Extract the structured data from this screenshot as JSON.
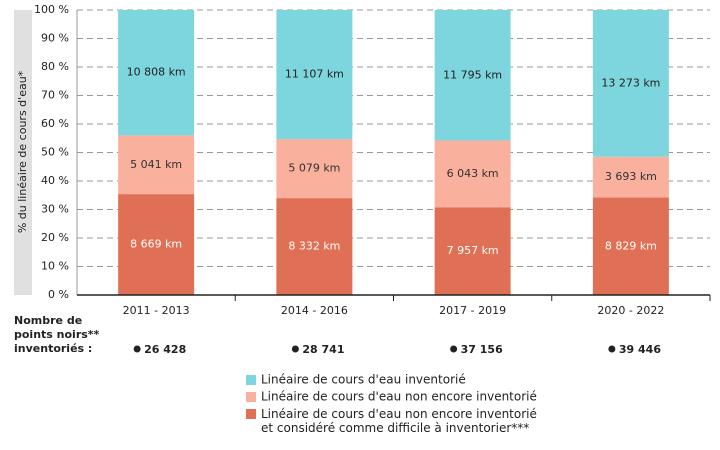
{
  "chart_data": {
    "type": "stacked_bar",
    "y_label": "% du linéaire de cours d'eau*",
    "categories": [
      "2011 - 2013",
      "2014 - 2016",
      "2017 - 2019",
      "2020 - 2022"
    ],
    "series": [
      {
        "name": "Linéaire de cours d'eau non encore inventorié\net considéré comme difficile à inventorier***",
        "color": "#e07055",
        "label_color": "#ffffff",
        "values": [
          35.4,
          34.0,
          30.8,
          34.2
        ],
        "value_labels": [
          "8 669 km",
          "8 332 km",
          "7 957 km",
          "8 829 km"
        ]
      },
      {
        "name": "Linéaire de cours d'eau non encore inventorié",
        "color": "#f9b09c",
        "label_color": "#333333",
        "values": [
          20.6,
          20.7,
          23.4,
          14.3
        ],
        "value_labels": [
          "5 041 km",
          "5 079 km",
          "6 043 km",
          "3 693 km"
        ]
      },
      {
        "name": "Linéaire de cours d'eau inventorié",
        "color": "#7dd6de",
        "label_color": "#222222",
        "values": [
          44.0,
          45.3,
          45.8,
          51.5
        ],
        "value_labels": [
          "10 808 km",
          "11 107 km",
          "11 795 km",
          "13 273 km"
        ]
      }
    ],
    "ylim": [
      0,
      100
    ],
    "yticks": [
      {
        "value": 0,
        "label": "0 %"
      },
      {
        "value": 10,
        "label": "10 %"
      },
      {
        "value": 20,
        "label": "20 %"
      },
      {
        "value": 30,
        "label": "30 %"
      },
      {
        "value": 40,
        "label": "40 %"
      },
      {
        "value": 50,
        "label": "50 %"
      },
      {
        "value": 60,
        "label": "60 %"
      },
      {
        "value": 70,
        "label": "70 %"
      },
      {
        "value": 80,
        "label": "80 %"
      },
      {
        "value": 90,
        "label": "90 %"
      },
      {
        "value": 100,
        "label": "100 %"
      }
    ],
    "grid": true,
    "points_noirs": {
      "label": "Nombre de\npoints noirs**\ninventoriés :",
      "values": [
        "26 428",
        "28 741",
        "37 156",
        "39 446"
      ]
    }
  }
}
